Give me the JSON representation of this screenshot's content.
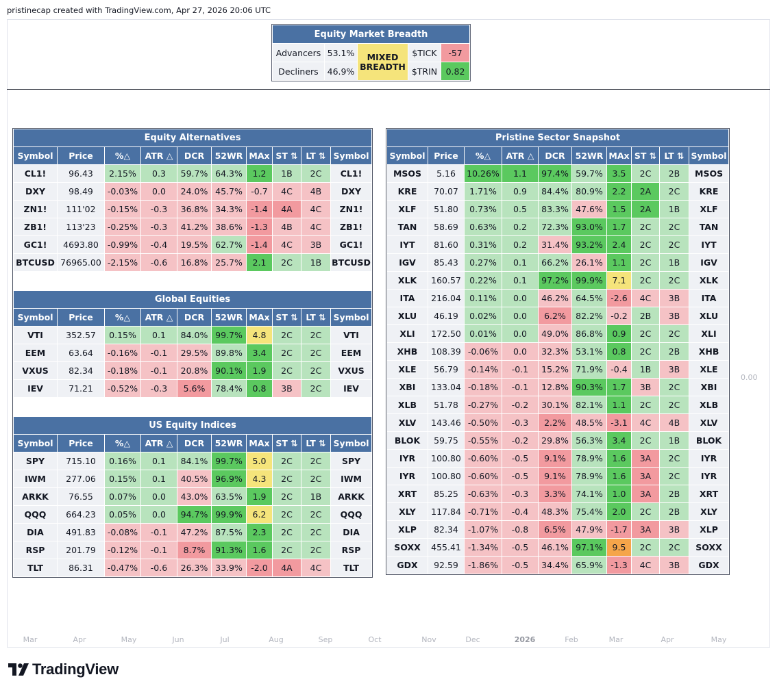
{
  "header": "pristinecap created with TradingView.com, Apr 27, 2026 20:06 UTC",
  "price_axis_label": "0.00",
  "time_axis": [
    "Mar",
    "Apr",
    "May",
    "Jun",
    "Jul",
    "Aug",
    "Sep",
    "Oct",
    "Nov",
    "Dec",
    "2026",
    "Feb",
    "Mar",
    "Apr",
    "May"
  ],
  "logo_text": "TradingView",
  "colors": {
    "header_blue": "#4a71a3",
    "dark_green": "#5bc95f",
    "light_green": "#b8e3bd",
    "light_red": "#f5c2c5",
    "red": "#f29a9f",
    "yellow": "#f5e47b",
    "orange": "#f5a54a"
  },
  "breadth": {
    "title": "Equity Market Breadth",
    "advancers_label": "Advancers",
    "advancers_value": "53.1%",
    "decliners_label": "Decliners",
    "decliners_value": "46.9%",
    "status": "MIXED BREADTH",
    "tick_label": "$TICK",
    "tick_value": "-57",
    "trin_label": "$TRIN",
    "trin_value": "0.82"
  },
  "columns": [
    "Symbol",
    "Price",
    "%△",
    "ATR △",
    "DCR",
    "52WR",
    "MAx",
    "ST ⇅",
    "LT ⇅",
    "Symbol"
  ],
  "left_sections": [
    {
      "title": "Equity Alternatives",
      "rows": [
        [
          "CL1!",
          "96.43",
          "2.15%",
          "0.3",
          "59.7%",
          "64.3%",
          "1.2",
          "1B",
          "2C",
          "CL1!"
        ],
        [
          "DXY",
          "98.49",
          "-0.03%",
          "0.0",
          "24.0%",
          "45.7%",
          "-0.7",
          "4C",
          "4B",
          "DXY"
        ],
        [
          "ZN1!",
          "111'02",
          "-0.15%",
          "-0.3",
          "36.8%",
          "34.3%",
          "-1.4",
          "4A",
          "4C",
          "ZN1!"
        ],
        [
          "ZB1!",
          "113'23",
          "-0.25%",
          "-0.3",
          "41.2%",
          "38.6%",
          "-1.3",
          "4B",
          "4C",
          "ZB1!"
        ],
        [
          "GC1!",
          "4693.80",
          "-0.99%",
          "-0.4",
          "19.5%",
          "62.7%",
          "-1.4",
          "4C",
          "3B",
          "GC1!"
        ],
        [
          "BTCUSD",
          "76965.00",
          "-2.15%",
          "-0.6",
          "16.8%",
          "25.7%",
          "2.1",
          "2C",
          "1B",
          "BTCUSD"
        ]
      ]
    },
    {
      "title": "Global Equities",
      "rows": [
        [
          "VTI",
          "352.57",
          "0.15%",
          "0.1",
          "84.0%",
          "99.7%",
          "4.8",
          "2C",
          "2C",
          "VTI"
        ],
        [
          "EEM",
          "63.64",
          "-0.16%",
          "-0.1",
          "29.5%",
          "89.8%",
          "3.4",
          "2C",
          "2C",
          "EEM"
        ],
        [
          "VXUS",
          "82.34",
          "-0.18%",
          "-0.1",
          "20.8%",
          "90.1%",
          "1.9",
          "2C",
          "2C",
          "VXUS"
        ],
        [
          "IEV",
          "71.21",
          "-0.52%",
          "-0.3",
          "5.6%",
          "78.4%",
          "0.8",
          "3B",
          "2C",
          "IEV"
        ]
      ]
    },
    {
      "title": "US Equity Indices",
      "rows": [
        [
          "SPY",
          "715.10",
          "0.16%",
          "0.1",
          "84.1%",
          "99.7%",
          "5.0",
          "2C",
          "2C",
          "SPY"
        ],
        [
          "IWM",
          "277.06",
          "0.15%",
          "0.1",
          "40.5%",
          "96.9%",
          "4.3",
          "2C",
          "2C",
          "IWM"
        ],
        [
          "ARKK",
          "76.55",
          "0.07%",
          "0.0",
          "43.0%",
          "63.5%",
          "1.9",
          "2C",
          "1B",
          "ARKK"
        ],
        [
          "QQQ",
          "664.23",
          "0.05%",
          "0.0",
          "94.7%",
          "99.9%",
          "6.2",
          "2C",
          "2C",
          "QQQ"
        ],
        [
          "DIA",
          "491.83",
          "-0.08%",
          "-0.1",
          "47.2%",
          "87.5%",
          "2.3",
          "2C",
          "2C",
          "DIA"
        ],
        [
          "RSP",
          "201.79",
          "-0.12%",
          "-0.1",
          "8.7%",
          "91.3%",
          "1.6",
          "2C",
          "2C",
          "RSP"
        ],
        [
          "TLT",
          "86.31",
          "-0.47%",
          "-0.6",
          "26.3%",
          "33.9%",
          "-2.0",
          "4A",
          "4C",
          "TLT"
        ]
      ]
    }
  ],
  "sector": {
    "title": "Pristine Sector Snapshot",
    "rows": [
      [
        "MSOS",
        "5.16",
        "10.26%",
        "1.1",
        "97.4%",
        "59.7%",
        "3.5",
        "2C",
        "2B",
        "MSOS"
      ],
      [
        "KRE",
        "70.07",
        "1.71%",
        "0.9",
        "84.4%",
        "80.9%",
        "2.2",
        "2A",
        "2C",
        "KRE"
      ],
      [
        "XLF",
        "51.80",
        "0.73%",
        "0.5",
        "83.3%",
        "47.6%",
        "1.5",
        "2A",
        "1B",
        "XLF"
      ],
      [
        "TAN",
        "58.69",
        "0.63%",
        "0.2",
        "72.3%",
        "93.0%",
        "1.7",
        "2C",
        "2C",
        "TAN"
      ],
      [
        "IYT",
        "81.60",
        "0.31%",
        "0.2",
        "31.4%",
        "93.2%",
        "2.4",
        "2C",
        "2C",
        "IYT"
      ],
      [
        "IGV",
        "85.43",
        "0.27%",
        "0.1",
        "66.2%",
        "26.1%",
        "1.1",
        "2C",
        "1B",
        "IGV"
      ],
      [
        "XLK",
        "160.57",
        "0.22%",
        "0.1",
        "97.2%",
        "99.9%",
        "7.1",
        "2C",
        "2C",
        "XLK"
      ],
      [
        "ITA",
        "216.04",
        "0.11%",
        "0.0",
        "46.2%",
        "64.5%",
        "-2.6",
        "4C",
        "3B",
        "ITA"
      ],
      [
        "XLU",
        "46.19",
        "0.02%",
        "0.0",
        "6.2%",
        "82.2%",
        "-0.2",
        "2B",
        "3B",
        "XLU"
      ],
      [
        "XLI",
        "172.50",
        "0.01%",
        "0.0",
        "49.0%",
        "86.8%",
        "0.9",
        "2C",
        "2C",
        "XLI"
      ],
      [
        "XHB",
        "108.39",
        "-0.06%",
        "0.0",
        "32.3%",
        "53.1%",
        "0.8",
        "2C",
        "2B",
        "XHB"
      ],
      [
        "XLE",
        "56.79",
        "-0.14%",
        "-0.1",
        "15.2%",
        "71.9%",
        "-0.4",
        "1B",
        "3B",
        "XLE"
      ],
      [
        "XBI",
        "133.04",
        "-0.18%",
        "-0.1",
        "12.8%",
        "90.3%",
        "1.7",
        "3B",
        "2C",
        "XBI"
      ],
      [
        "XLB",
        "51.78",
        "-0.27%",
        "-0.2",
        "30.1%",
        "82.1%",
        "1.1",
        "2C",
        "2C",
        "XLB"
      ],
      [
        "XLV",
        "143.46",
        "-0.50%",
        "-0.3",
        "2.2%",
        "48.5%",
        "-3.1",
        "4C",
        "4B",
        "XLV"
      ],
      [
        "BLOK",
        "59.75",
        "-0.55%",
        "-0.2",
        "29.8%",
        "56.3%",
        "3.4",
        "2C",
        "1B",
        "BLOK"
      ],
      [
        "IYR",
        "100.80",
        "-0.60%",
        "-0.5",
        "9.1%",
        "78.9%",
        "1.6",
        "3A",
        "2C",
        "IYR"
      ],
      [
        "IYR",
        "100.80",
        "-0.60%",
        "-0.5",
        "9.1%",
        "78.9%",
        "1.6",
        "3A",
        "2C",
        "IYR"
      ],
      [
        "XRT",
        "85.25",
        "-0.63%",
        "-0.3",
        "3.3%",
        "74.1%",
        "1.0",
        "3A",
        "2B",
        "XRT"
      ],
      [
        "XLY",
        "117.84",
        "-0.71%",
        "-0.4",
        "48.3%",
        "75.4%",
        "2.0",
        "2C",
        "2B",
        "XLY"
      ],
      [
        "XLP",
        "82.34",
        "-1.07%",
        "-0.8",
        "6.5%",
        "47.9%",
        "-1.7",
        "3A",
        "3B",
        "XLP"
      ],
      [
        "SOXX",
        "455.41",
        "-1.34%",
        "-0.5",
        "46.1%",
        "97.1%",
        "9.5",
        "2C",
        "2C",
        "SOXX"
      ],
      [
        "GDX",
        "92.59",
        "-1.86%",
        "-0.5",
        "34.4%",
        "65.9%",
        "-1.3",
        "4C",
        "3B",
        "GDX"
      ]
    ]
  }
}
